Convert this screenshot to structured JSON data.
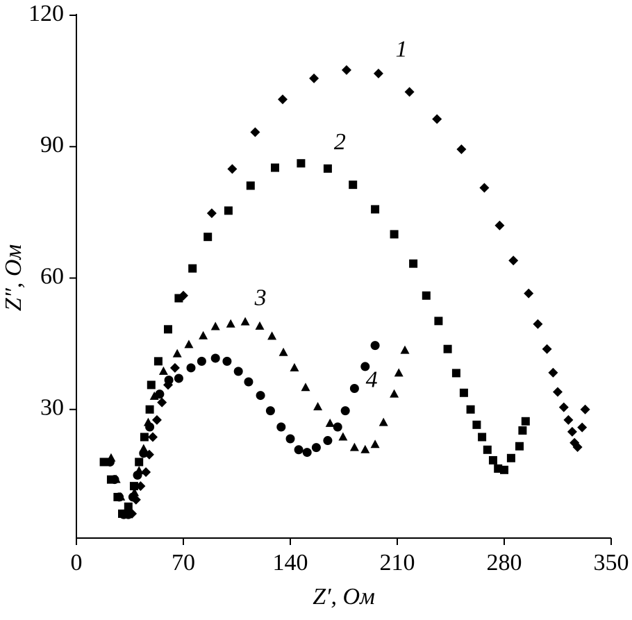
{
  "chart_data": {
    "type": "scatter",
    "x_label": "Z′, Ом",
    "y_label": "Z″, Ом",
    "xlim": [
      0,
      350
    ],
    "xticks": [
      0,
      70,
      140,
      210,
      280,
      350
    ],
    "ylim": [
      0,
      120
    ],
    "yticks": [
      30,
      60,
      90,
      120
    ],
    "series": [
      {
        "name": "1",
        "marker": "diamond",
        "color": "#000000",
        "x": [
          36.4,
          39,
          42,
          45.5,
          47.7,
          50,
          52.7,
          56,
          60,
          64.5,
          70,
          88.6,
          102,
          117,
          135,
          155.5,
          176.8,
          197.7,
          218,
          236,
          252,
          267,
          277,
          286,
          296,
          302,
          308,
          312,
          315,
          319,
          322,
          324.5,
          326,
          328,
          331,
          333
        ],
        "y": [
          6.2,
          9.4,
          12.5,
          15.7,
          19.7,
          23.7,
          27.6,
          31.6,
          35.6,
          39.5,
          56,
          74.8,
          84.9,
          93.3,
          100.8,
          105.6,
          107.5,
          106.7,
          102.5,
          96.3,
          89.4,
          80.6,
          72,
          64,
          56.5,
          49.5,
          43.8,
          38.4,
          34,
          30.5,
          27.6,
          24.9,
          22.4,
          21.4,
          25.9,
          30
        ]
      },
      {
        "name": "2",
        "marker": "square",
        "color": "#000000",
        "x": [
          18,
          22.7,
          27,
          30,
          34,
          37.7,
          41,
          44.5,
          48,
          49,
          53.6,
          60,
          67,
          76,
          86,
          99.5,
          114,
          130,
          147,
          164.5,
          181,
          195.5,
          208,
          220.5,
          229,
          237,
          243,
          248.6,
          253.6,
          258,
          262,
          265.5,
          269,
          272.7,
          276,
          280,
          284.5,
          290,
          292,
          294
        ],
        "y": [
          18,
          14,
          10,
          6.2,
          7.8,
          12.5,
          18,
          23.7,
          30,
          35.6,
          41,
          48.3,
          55.4,
          62.2,
          69.4,
          75.4,
          81.1,
          85.2,
          86.2,
          85,
          81.3,
          75.7,
          70,
          63.3,
          56,
          50.2,
          43.8,
          38.3,
          33.8,
          30,
          26.5,
          23.7,
          20.8,
          18.4,
          16.5,
          16.2,
          18.9,
          21.6,
          25.2,
          27.3
        ]
      },
      {
        "name": "3",
        "marker": "triangle",
        "color": "#000000",
        "x": [
          22.7,
          26,
          29,
          32,
          35,
          38,
          41,
          44,
          47,
          51,
          57,
          66,
          73.6,
          83,
          91,
          101,
          110.5,
          120,
          128,
          135.5,
          142.7,
          150,
          158,
          166,
          174.5,
          182,
          189,
          195.5,
          201,
          208,
          211,
          215
        ],
        "y": [
          18.9,
          14,
          10,
          6.5,
          7,
          11,
          16,
          21,
          27,
          33,
          38.7,
          42.7,
          44.8,
          46.8,
          48.9,
          49.5,
          50,
          49,
          46.7,
          43,
          39.5,
          35,
          30.6,
          26.8,
          23.7,
          21.3,
          20.8,
          22,
          27,
          33.5,
          38.3,
          43.5
        ]
      },
      {
        "name": "4",
        "marker": "circle",
        "color": "#000000",
        "x": [
          22,
          25,
          28,
          31,
          34,
          37,
          40,
          44,
          48,
          54.5,
          60.5,
          67,
          75,
          82,
          91,
          98.6,
          106,
          112.7,
          120.5,
          127,
          134,
          140,
          145.5,
          151,
          157,
          164.5,
          171,
          176,
          182,
          189,
          195.5
        ],
        "y": [
          18,
          14,
          10,
          6,
          6,
          10,
          15,
          20,
          26,
          33.5,
          36.7,
          37.1,
          39.5,
          41,
          41.7,
          41,
          38.7,
          36.3,
          33.2,
          29.7,
          26,
          23.3,
          20.8,
          20.2,
          21.3,
          22.9,
          26,
          29.7,
          34.8,
          39.8,
          44.6
        ]
      }
    ]
  }
}
